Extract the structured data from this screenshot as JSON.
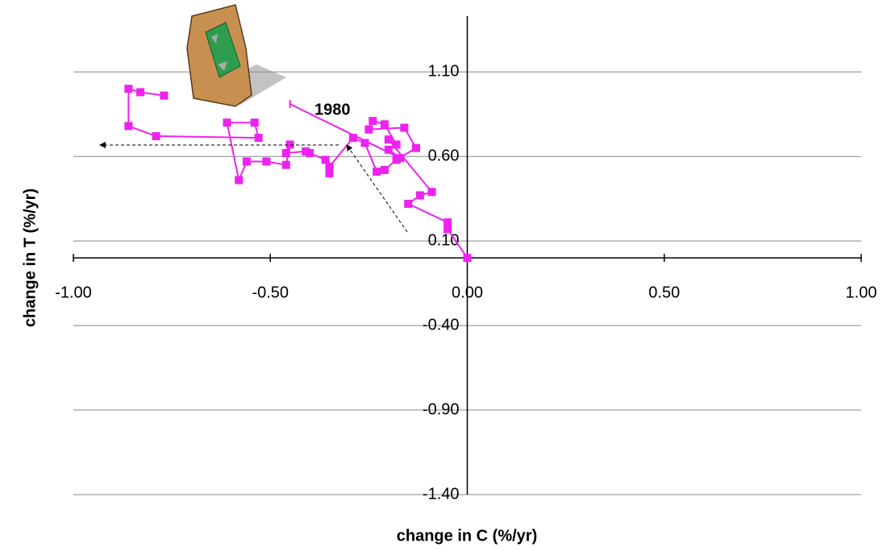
{
  "chart_data": {
    "type": "scatter-line",
    "xlabel": "change in C (%/yr)",
    "ylabel": "change in T (%/yr)",
    "annotation": "1980",
    "xlim": [
      -1,
      1
    ],
    "ylim": [
      -1.4,
      1.43
    ],
    "xticks": [
      {
        "value": -1,
        "label": "-1.00"
      },
      {
        "value": -0.5,
        "label": "-0.50"
      },
      {
        "value": 0,
        "label": "0.00"
      },
      {
        "value": 0.5,
        "label": "0.50"
      },
      {
        "value": 1,
        "label": "1.00"
      }
    ],
    "yticks": [
      {
        "value": 1.1,
        "label": "1.10"
      },
      {
        "value": 0.6,
        "label": "0.60"
      },
      {
        "value": 0.1,
        "label": "0.10"
      },
      {
        "value": -0.4,
        "label": "-0.40"
      },
      {
        "value": -0.9,
        "label": "-0.90"
      },
      {
        "value": -1.4,
        "label": "-1.40"
      }
    ],
    "grid": true,
    "series": [
      {
        "color": "#ee22ee",
        "x": [
          -0.45,
          -0.17,
          -0.2,
          -0.18,
          -0.21,
          -0.24,
          -0.25,
          -0.16,
          -0.13,
          -0.18,
          -0.21,
          -0.23,
          -0.26,
          -0.29,
          -0.35,
          -0.35,
          -0.36,
          -0.4,
          -0.41,
          -0.46,
          -0.45,
          -0.46,
          -0.51,
          -0.56,
          -0.58,
          -0.61,
          -0.54,
          -0.53,
          -0.79,
          -0.86,
          -0.86,
          -0.83,
          -0.77
        ],
        "y": [
          0.91,
          0.59,
          0.64,
          0.67,
          0.79,
          0.81,
          0.76,
          0.77,
          0.65,
          0.58,
          0.52,
          0.51,
          0.68,
          0.71,
          0.54,
          0.5,
          0.58,
          0.62,
          0.63,
          0.62,
          0.67,
          0.55,
          0.57,
          0.57,
          0.46,
          0.8,
          0.8,
          0.71,
          0.72,
          0.78,
          1.0,
          0.98,
          0.96
        ]
      },
      {
        "color": "#ee22ee",
        "x": [
          0,
          -0.05,
          -0.05,
          -0.15,
          -0.12,
          -0.09,
          -0.2
        ],
        "y": [
          0,
          0.17,
          0.21,
          0.32,
          0.37,
          0.39,
          0.7
        ]
      }
    ]
  }
}
